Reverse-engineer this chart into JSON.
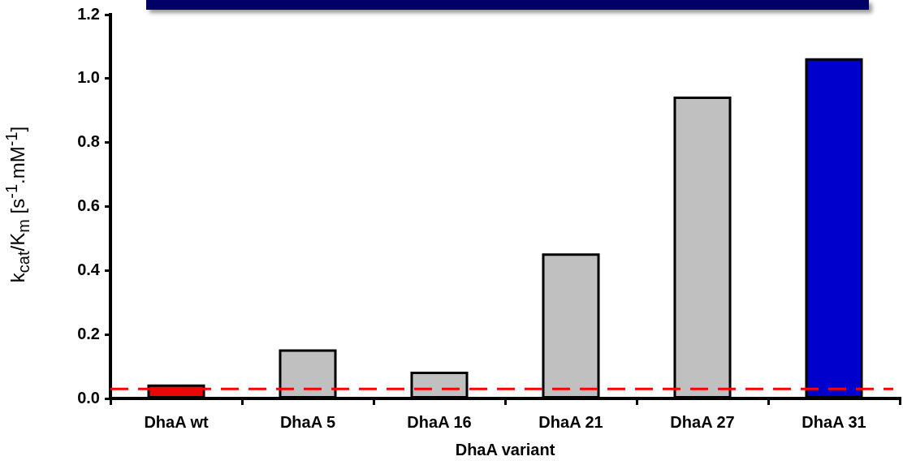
{
  "chart_data": {
    "type": "bar",
    "categories": [
      "DhaA wt",
      "DhaA 5",
      "DhaA 16",
      "DhaA 21",
      "DhaA 27",
      "DhaA 31"
    ],
    "values": [
      0.04,
      0.15,
      0.08,
      0.45,
      0.94,
      1.06
    ],
    "colors": [
      "#e80808",
      "#c0c0c0",
      "#c0c0c0",
      "#c0c0c0",
      "#c0c0c0",
      "#0000cc"
    ],
    "xlabel": "DhaA variant",
    "ylabel": "k$_{cat}$/K$_{m}$ [s$^{-1}$.mM$^{-1}$]",
    "ylim": [
      0,
      1.2
    ],
    "yticks": [
      {
        "value": 0,
        "label": "0.0"
      },
      0.2,
      0.4,
      0.6,
      0.8,
      {
        "value": 1,
        "label": "1.0"
      },
      1.2
    ],
    "ref_lines": [
      {
        "axis": "y",
        "value": 0.03,
        "color": "#ff0000",
        "line_style": "dashed"
      }
    ],
    "grid": false,
    "legend": false
  }
}
